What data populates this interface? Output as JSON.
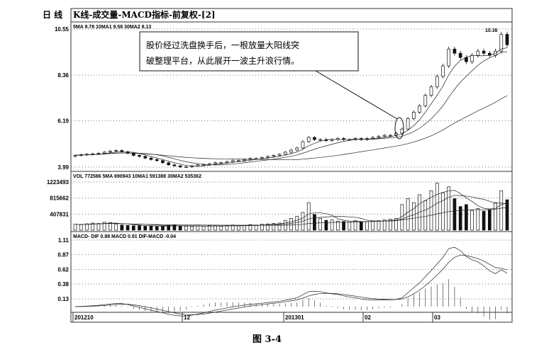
{
  "header": {
    "period": "日  线",
    "title": "K线-成交量-MACD指标-前复权-[2]"
  },
  "price_panel": {
    "legend": "5MA 9.78  10MA1 9.58  30MA2 8.13",
    "peak_label": "10.38"
  },
  "volume_panel": {
    "legend": "VOL 772586  5MA 690943  10MA1 591388  30MA2 535362"
  },
  "macd_panel": {
    "legend": "MACD- DIF 0.88  MACD 0.91  DIF-MACD -0.04"
  },
  "annotation": {
    "line1": "股价经过洗盘换手后，一根放量大阳线突",
    "line2": "破整理平台，从此展开一波主升浪行情。"
  },
  "caption": "图   3-4",
  "chart_data": {
    "type": "candlestick",
    "title": "K线-成交量-MACD指标-前复权-[2]",
    "x_ticks": [
      "201210",
      "12",
      "201301",
      "02",
      "03"
    ],
    "price_ticks": [
      "10.55",
      "8.36",
      "6.19",
      "3.99"
    ],
    "price_ylim": [
      3.99,
      10.55
    ],
    "volume_ticks": [
      "1223493",
      "815662",
      "407831"
    ],
    "volume_ylim": [
      0,
      1223493
    ],
    "macd_ticks": [
      "1.11",
      "0.87",
      "0.62",
      "0.38",
      "0.13"
    ],
    "macd_ylim": [
      -0.1,
      1.11
    ],
    "grid": "dotted horizontal",
    "close": [
      4.55,
      4.58,
      4.6,
      4.62,
      4.65,
      4.7,
      4.75,
      4.78,
      4.72,
      4.65,
      4.55,
      4.5,
      4.42,
      4.35,
      4.3,
      4.2,
      4.1,
      4.05,
      4.0,
      4.0,
      4.05,
      4.1,
      4.1,
      4.15,
      4.2,
      4.2,
      4.25,
      4.3,
      4.3,
      4.35,
      4.4,
      4.4,
      4.45,
      4.5,
      4.55,
      4.6,
      4.7,
      4.8,
      4.9,
      5.2,
      5.4,
      5.3,
      5.3,
      5.25,
      5.3,
      5.35,
      5.3,
      5.3,
      5.35,
      5.3,
      5.35,
      5.4,
      5.45,
      5.5,
      5.5,
      5.6,
      5.8,
      6.3,
      6.6,
      6.9,
      7.4,
      7.8,
      8.3,
      8.8,
      9.6,
      9.4,
      9.2,
      9.0,
      9.3,
      9.5,
      9.4,
      9.3,
      9.5,
      10.3,
      9.8
    ],
    "volume": [
      150000,
      140000,
      160000,
      180000,
      170000,
      200000,
      190000,
      150000,
      130000,
      120000,
      110000,
      120000,
      100000,
      110000,
      90000,
      100000,
      120000,
      130000,
      110000,
      100000,
      90000,
      110000,
      100000,
      120000,
      110000,
      100000,
      120000,
      130000,
      110000,
      120000,
      140000,
      130000,
      150000,
      160000,
      170000,
      180000,
      250000,
      300000,
      350000,
      450000,
      700000,
      400000,
      300000,
      250000,
      260000,
      230000,
      220000,
      200000,
      240000,
      210000,
      220000,
      230000,
      240000,
      260000,
      280000,
      300000,
      650000,
      800000,
      700000,
      900000,
      750000,
      1000000,
      1200000,
      950000,
      1100000,
      800000,
      600000,
      650000,
      500000,
      550000,
      480000,
      520000,
      700000,
      1000000,
      772586
    ],
    "colors": {
      "up": "#ffffff",
      "down": "#111111",
      "line": "#222222"
    }
  }
}
